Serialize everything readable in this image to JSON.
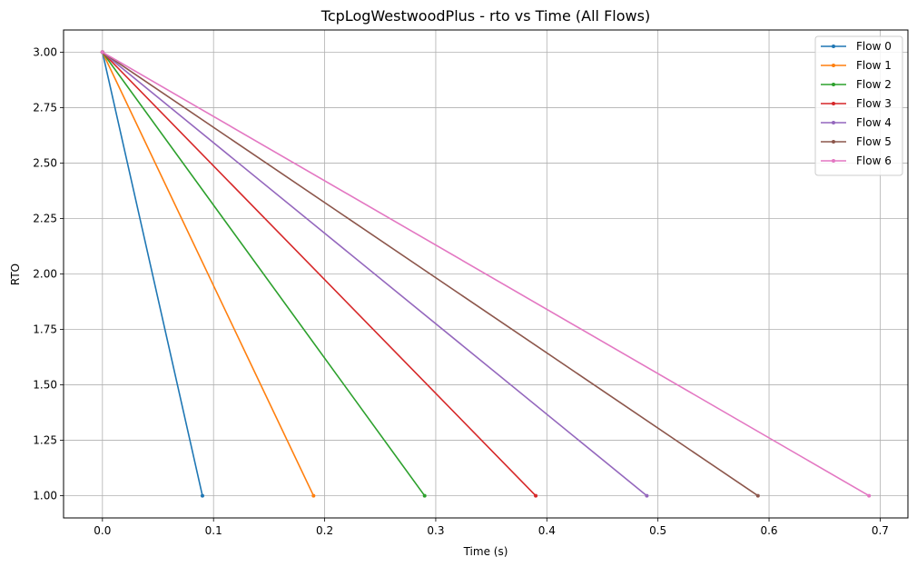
{
  "chart_data": {
    "type": "line",
    "title": "TcpLogWestwoodPlus - rto vs Time (All Flows)",
    "xlabel": "Time (s)",
    "ylabel": "RTO",
    "xlim": [
      -0.035,
      0.725
    ],
    "ylim": [
      0.9,
      3.1
    ],
    "xticks": [
      0.0,
      0.1,
      0.2,
      0.3,
      0.4,
      0.5,
      0.6,
      0.7
    ],
    "xtick_labels": [
      "0.0",
      "0.1",
      "0.2",
      "0.3",
      "0.4",
      "0.5",
      "0.6",
      "0.7"
    ],
    "yticks": [
      1.0,
      1.25,
      1.5,
      1.75,
      2.0,
      2.25,
      2.5,
      2.75,
      3.0
    ],
    "ytick_labels": [
      "1.00",
      "1.25",
      "1.50",
      "1.75",
      "2.00",
      "2.25",
      "2.50",
      "2.75",
      "3.00"
    ],
    "grid": true,
    "legend_position": "top-right",
    "series": [
      {
        "name": "Flow 0",
        "color": "#1f77b4",
        "x": [
          0.0,
          0.09
        ],
        "y": [
          3.0,
          1.0
        ]
      },
      {
        "name": "Flow 1",
        "color": "#ff7f0e",
        "x": [
          0.0,
          0.19
        ],
        "y": [
          3.0,
          1.0
        ]
      },
      {
        "name": "Flow 2",
        "color": "#2ca02c",
        "x": [
          0.0,
          0.29
        ],
        "y": [
          3.0,
          1.0
        ]
      },
      {
        "name": "Flow 3",
        "color": "#d62728",
        "x": [
          0.0,
          0.39
        ],
        "y": [
          3.0,
          1.0
        ]
      },
      {
        "name": "Flow 4",
        "color": "#9467bd",
        "x": [
          0.0,
          0.49
        ],
        "y": [
          3.0,
          1.0
        ]
      },
      {
        "name": "Flow 5",
        "color": "#8c564b",
        "x": [
          0.0,
          0.59
        ],
        "y": [
          3.0,
          1.0
        ]
      },
      {
        "name": "Flow 6",
        "color": "#e377c2",
        "x": [
          0.0,
          0.69
        ],
        "y": [
          3.0,
          1.0
        ]
      }
    ]
  }
}
